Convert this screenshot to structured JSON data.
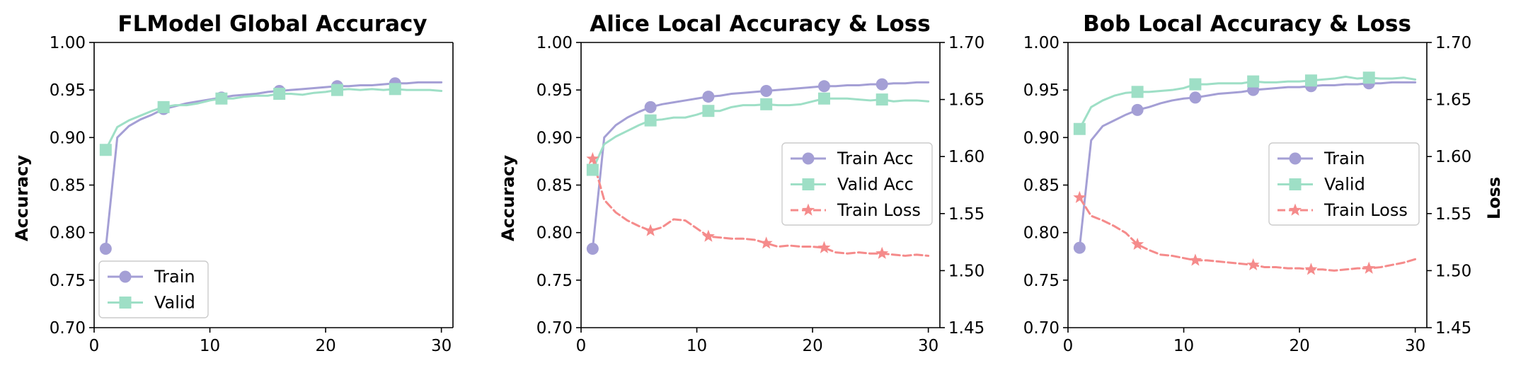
{
  "colors": {
    "train": "#a49fd5",
    "valid": "#9edfc6",
    "loss": "#f58b8b"
  },
  "chart_data": [
    {
      "type": "line",
      "title": "FLModel Global Accuracy",
      "ylabel": "Accuracy",
      "xlim": [
        0,
        31
      ],
      "xticks": [
        0,
        10,
        20,
        30
      ],
      "ylim": [
        0.7,
        1.0
      ],
      "yticks": [
        "0.70",
        "0.75",
        "0.80",
        "0.85",
        "0.90",
        "0.95",
        "1.00"
      ],
      "legend_position": "lower-left",
      "series": [
        {
          "name": "Train",
          "role": "train",
          "marker": "circle",
          "markevery": [
            1,
            6,
            11,
            16,
            21,
            26
          ],
          "x": [
            1,
            2,
            3,
            4,
            5,
            6,
            7,
            8,
            9,
            10,
            11,
            12,
            13,
            14,
            15,
            16,
            17,
            18,
            19,
            20,
            21,
            22,
            23,
            24,
            25,
            26,
            27,
            28,
            29,
            30
          ],
          "y": [
            0.783,
            0.9,
            0.912,
            0.919,
            0.924,
            0.93,
            0.933,
            0.936,
            0.938,
            0.94,
            0.942,
            0.944,
            0.945,
            0.946,
            0.948,
            0.949,
            0.95,
            0.951,
            0.952,
            0.953,
            0.954,
            0.954,
            0.955,
            0.955,
            0.956,
            0.957,
            0.957,
            0.958,
            0.958,
            0.958
          ]
        },
        {
          "name": "Valid",
          "role": "valid",
          "marker": "square",
          "markevery": [
            1,
            6,
            11,
            16,
            21,
            26
          ],
          "x": [
            1,
            2,
            3,
            4,
            5,
            6,
            7,
            8,
            9,
            10,
            11,
            12,
            13,
            14,
            15,
            16,
            17,
            18,
            19,
            20,
            21,
            22,
            23,
            24,
            25,
            26,
            27,
            28,
            29,
            30
          ],
          "y": [
            0.887,
            0.911,
            0.918,
            0.923,
            0.928,
            0.932,
            0.934,
            0.934,
            0.936,
            0.939,
            0.941,
            0.941,
            0.943,
            0.944,
            0.944,
            0.946,
            0.946,
            0.945,
            0.947,
            0.948,
            0.95,
            0.951,
            0.95,
            0.951,
            0.95,
            0.951,
            0.95,
            0.95,
            0.95,
            0.949
          ]
        }
      ]
    },
    {
      "type": "line",
      "title": "Alice Local Accuracy & Loss",
      "ylabel": "Accuracy",
      "y2label": "",
      "xlim": [
        0,
        31
      ],
      "xticks": [
        0,
        10,
        20,
        30
      ],
      "ylim": [
        0.7,
        1.0
      ],
      "yticks": [
        "0.70",
        "0.75",
        "0.80",
        "0.85",
        "0.90",
        "0.95",
        "1.00"
      ],
      "y2lim": [
        1.45,
        1.7
      ],
      "y2ticks": [
        "1.45",
        "1.50",
        "1.55",
        "1.60",
        "1.65",
        "1.70"
      ],
      "legend_position": "center-right",
      "series": [
        {
          "name": "Train Acc",
          "role": "train",
          "marker": "circle",
          "markevery": [
            1,
            6,
            11,
            16,
            21,
            26
          ],
          "x": [
            1,
            2,
            3,
            4,
            5,
            6,
            7,
            8,
            9,
            10,
            11,
            12,
            13,
            14,
            15,
            16,
            17,
            18,
            19,
            20,
            21,
            22,
            23,
            24,
            25,
            26,
            27,
            28,
            29,
            30
          ],
          "y": [
            0.783,
            0.9,
            0.913,
            0.921,
            0.927,
            0.932,
            0.935,
            0.937,
            0.939,
            0.941,
            0.943,
            0.944,
            0.946,
            0.947,
            0.948,
            0.949,
            0.95,
            0.951,
            0.952,
            0.953,
            0.954,
            0.954,
            0.955,
            0.955,
            0.956,
            0.956,
            0.957,
            0.957,
            0.958,
            0.958
          ]
        },
        {
          "name": "Valid Acc",
          "role": "valid",
          "marker": "square",
          "markevery": [
            1,
            6,
            11,
            16,
            21,
            26
          ],
          "x": [
            1,
            2,
            3,
            4,
            5,
            6,
            7,
            8,
            9,
            10,
            11,
            12,
            13,
            14,
            15,
            16,
            17,
            18,
            19,
            20,
            21,
            22,
            23,
            24,
            25,
            26,
            27,
            28,
            29,
            30
          ],
          "y": [
            0.866,
            0.893,
            0.901,
            0.907,
            0.913,
            0.918,
            0.919,
            0.921,
            0.921,
            0.924,
            0.928,
            0.928,
            0.932,
            0.934,
            0.934,
            0.935,
            0.934,
            0.934,
            0.935,
            0.938,
            0.941,
            0.941,
            0.941,
            0.94,
            0.939,
            0.94,
            0.938,
            0.939,
            0.939,
            0.938
          ]
        },
        {
          "name": "Train Loss",
          "role": "loss",
          "marker": "star",
          "axis": "right",
          "markevery": [
            1,
            6,
            11,
            16,
            21,
            26
          ],
          "x": [
            1,
            2,
            3,
            4,
            5,
            6,
            7,
            8,
            9,
            10,
            11,
            12,
            13,
            14,
            15,
            16,
            17,
            18,
            19,
            20,
            21,
            22,
            23,
            24,
            25,
            26,
            27,
            28,
            29,
            30
          ],
          "y": [
            1.598,
            1.562,
            1.551,
            1.544,
            1.539,
            1.535,
            1.538,
            1.545,
            1.544,
            1.537,
            1.53,
            1.529,
            1.528,
            1.528,
            1.527,
            1.524,
            1.521,
            1.522,
            1.521,
            1.521,
            1.52,
            1.516,
            1.515,
            1.516,
            1.515,
            1.515,
            1.514,
            1.513,
            1.514,
            1.513
          ]
        }
      ]
    },
    {
      "type": "line",
      "title": "Bob Local Accuracy & Loss",
      "ylabel": "",
      "y2label": "Loss",
      "xlim": [
        0,
        31
      ],
      "xticks": [
        0,
        10,
        20,
        30
      ],
      "ylim": [
        0.7,
        1.0
      ],
      "yticks": [
        "0.70",
        "0.75",
        "0.80",
        "0.85",
        "0.90",
        "0.95",
        "1.00"
      ],
      "y2lim": [
        1.45,
        1.7
      ],
      "y2ticks": [
        "1.45",
        "1.50",
        "1.55",
        "1.60",
        "1.65",
        "1.70"
      ],
      "legend_position": "center-right",
      "series": [
        {
          "name": "Train",
          "role": "train",
          "marker": "circle",
          "markevery": [
            1,
            6,
            11,
            16,
            21,
            26
          ],
          "x": [
            1,
            2,
            3,
            4,
            5,
            6,
            7,
            8,
            9,
            10,
            11,
            12,
            13,
            14,
            15,
            16,
            17,
            18,
            19,
            20,
            21,
            22,
            23,
            24,
            25,
            26,
            27,
            28,
            29,
            30
          ],
          "y": [
            0.784,
            0.897,
            0.912,
            0.918,
            0.924,
            0.929,
            0.932,
            0.936,
            0.939,
            0.941,
            0.942,
            0.944,
            0.946,
            0.947,
            0.948,
            0.95,
            0.951,
            0.952,
            0.953,
            0.953,
            0.954,
            0.955,
            0.955,
            0.956,
            0.956,
            0.957,
            0.957,
            0.958,
            0.958,
            0.958
          ]
        },
        {
          "name": "Valid",
          "role": "valid",
          "marker": "square",
          "markevery": [
            1,
            6,
            11,
            16,
            21,
            26
          ],
          "x": [
            1,
            2,
            3,
            4,
            5,
            6,
            7,
            8,
            9,
            10,
            11,
            12,
            13,
            14,
            15,
            16,
            17,
            18,
            19,
            20,
            21,
            22,
            23,
            24,
            25,
            26,
            27,
            28,
            29,
            30
          ],
          "y": [
            0.909,
            0.932,
            0.939,
            0.944,
            0.947,
            0.948,
            0.948,
            0.949,
            0.95,
            0.952,
            0.956,
            0.956,
            0.957,
            0.957,
            0.957,
            0.959,
            0.958,
            0.958,
            0.959,
            0.959,
            0.96,
            0.961,
            0.962,
            0.964,
            0.962,
            0.963,
            0.962,
            0.962,
            0.963,
            0.961
          ]
        },
        {
          "name": "Train Loss",
          "role": "loss",
          "marker": "star",
          "axis": "right",
          "markevery": [
            1,
            6,
            11,
            16,
            21,
            26
          ],
          "x": [
            1,
            2,
            3,
            4,
            5,
            6,
            7,
            8,
            9,
            10,
            11,
            12,
            13,
            14,
            15,
            16,
            17,
            18,
            19,
            20,
            21,
            22,
            23,
            24,
            25,
            26,
            27,
            28,
            29,
            30
          ],
          "y": [
            1.564,
            1.548,
            1.544,
            1.539,
            1.533,
            1.523,
            1.518,
            1.514,
            1.513,
            1.511,
            1.509,
            1.509,
            1.508,
            1.507,
            1.506,
            1.505,
            1.503,
            1.503,
            1.502,
            1.502,
            1.501,
            1.501,
            1.5,
            1.501,
            1.502,
            1.502,
            1.503,
            1.505,
            1.507,
            1.51
          ]
        }
      ]
    }
  ]
}
